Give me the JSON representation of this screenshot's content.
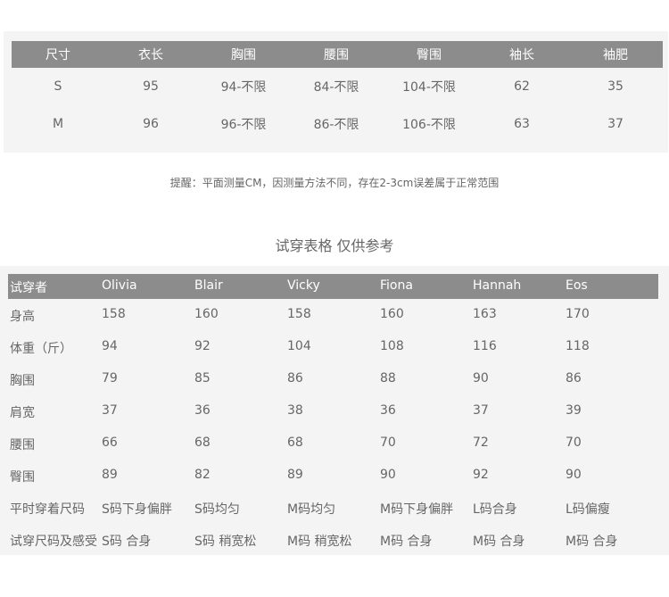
{
  "size_table": {
    "headers": [
      "尺寸",
      "衣长",
      "胸围",
      "腰围",
      "臀围",
      "袖长",
      "袖肥"
    ],
    "rows": [
      [
        "S",
        "95",
        "94-不限",
        "84-不限",
        "104-不限",
        "62",
        "35"
      ],
      [
        "M",
        "96",
        "96-不限",
        "86-不限",
        "106-不限",
        "63",
        "37"
      ]
    ]
  },
  "note": "提醒：平面测量CM，因测量方法不同，存在2-3cm误差属于正常范围",
  "try_title": "试穿表格 仅供参考",
  "try_table": {
    "headers": [
      "试穿者",
      "Olivia",
      "Blair",
      "Vicky",
      "Fiona",
      "Hannah",
      "Eos"
    ],
    "rows": [
      [
        "身高",
        "158",
        "160",
        "158",
        "160",
        "163",
        "170"
      ],
      [
        "体重（斤）",
        "94",
        "92",
        "104",
        "108",
        "116",
        "118"
      ],
      [
        "胸围",
        "79",
        "85",
        "86",
        "88",
        "90",
        "86"
      ],
      [
        "肩宽",
        "37",
        "36",
        "38",
        "36",
        "37",
        "39"
      ],
      [
        "腰围",
        "66",
        "68",
        "68",
        "70",
        "72",
        "70"
      ],
      [
        "臀围",
        "89",
        "82",
        "89",
        "90",
        "92",
        "90"
      ],
      [
        "平时穿着尺码",
        "S码下身偏胖",
        "S码均匀",
        "M码均匀",
        "M码下身偏胖",
        "L码合身",
        "L码偏瘦"
      ],
      [
        "试穿尺码及感受",
        "S码 合身",
        "S码 稍宽松",
        "M码 稍宽松",
        "M码 合身",
        "M码 合身",
        "M码 合身"
      ]
    ]
  },
  "colors": {
    "header_bg": "#8c8c8c",
    "panel_bg": "#f4f4f4",
    "text": "#666666"
  }
}
